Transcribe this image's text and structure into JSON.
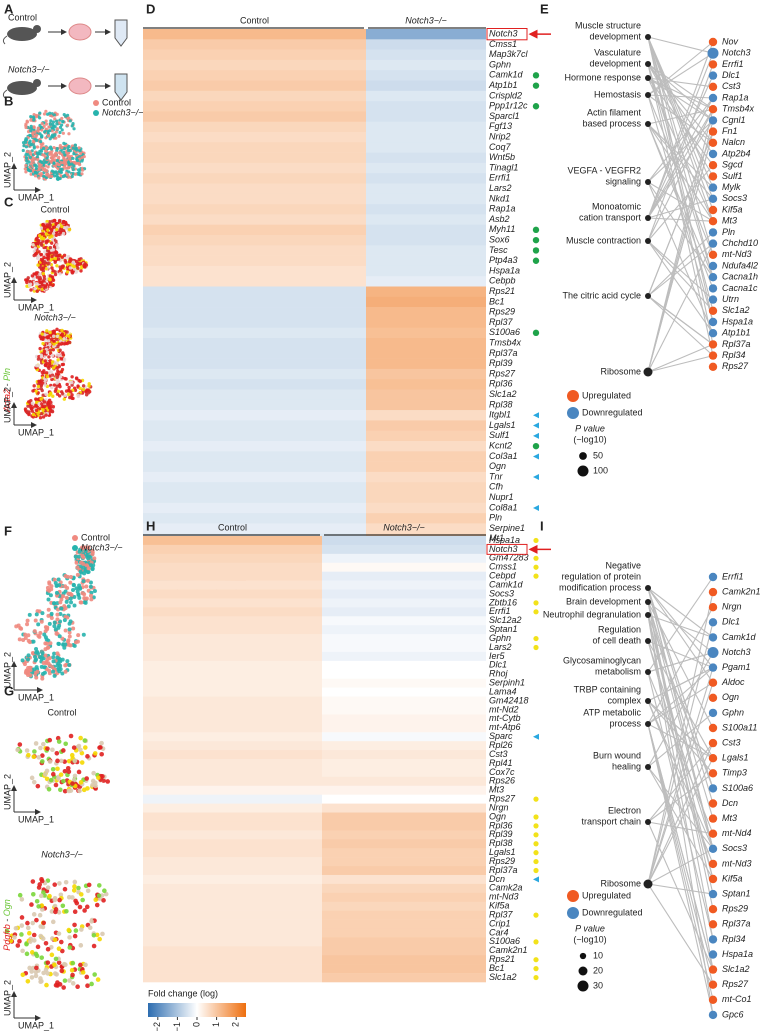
{
  "panels": {
    "A": {
      "label": "A",
      "groups": [
        "Control",
        "Notch3−/−"
      ]
    },
    "B": {
      "label": "B",
      "legend": [
        {
          "name": "Control",
          "color": "#f08a80"
        },
        {
          "name": "Notch3−/−",
          "color": "#27b3ad"
        }
      ],
      "x_label": "UMAP_1",
      "y_label": "UMAP_2"
    },
    "C": {
      "label": "C",
      "titles": [
        "Control",
        "Notch3−/−"
      ],
      "gene_label": [
        {
          "text": "Acta2",
          "color": "#e02020"
        },
        {
          "text": " - ",
          "color": "#444444"
        },
        {
          "text": "Pln",
          "color": "#6cc63a"
        }
      ],
      "x_label": "UMAP_1",
      "y_label": "UMAP_2"
    },
    "D": {
      "label": "D",
      "groups": [
        "Control",
        "Notch3−/−"
      ],
      "genes": [
        "Notch3",
        "Cmss1",
        "Map3k7cl",
        "Gphn",
        "Camk1d",
        "Atp1b1",
        "Crispld2",
        "Ppp1r12c",
        "Sparcl1",
        "Fgf13",
        "Nrip2",
        "Coq7",
        "Wnt5b",
        "Tinagl1",
        "Errfi1",
        "Lars2",
        "Nkd1",
        "Rap1a",
        "Asb2",
        "Myh11",
        "Sox6",
        "Tesc",
        "Ptp4a3",
        "Hspa1a",
        "Cebpb",
        "Rps21",
        "Bc1",
        "Rps29",
        "Rpl37",
        "S100a6",
        "Tmsb4x",
        "Rpl37a",
        "Rpl39",
        "Rps27",
        "Rpl36",
        "Slc1a2",
        "Rpl38",
        "Itgbl1",
        "Lgals1",
        "Sulf1",
        "Kcnt2",
        "Col3a1",
        "Ogn",
        "Tnr",
        "Cfh",
        "Nupr1",
        "Col8a1",
        "Pln",
        "Serpine1",
        "Mt1"
      ],
      "values": [
        [
          1.2,
          -1.4
        ],
        [
          0.9,
          -0.6
        ],
        [
          0.8,
          -0.5
        ],
        [
          0.7,
          -0.4
        ],
        [
          0.8,
          -0.5
        ],
        [
          0.9,
          -0.6
        ],
        [
          0.7,
          -0.4
        ],
        [
          0.8,
          -0.5
        ],
        [
          0.9,
          -0.5
        ],
        [
          0.7,
          -0.4
        ],
        [
          0.6,
          -0.4
        ],
        [
          0.7,
          -0.4
        ],
        [
          0.7,
          -0.5
        ],
        [
          0.6,
          -0.4
        ],
        [
          0.7,
          -0.5
        ],
        [
          0.6,
          -0.4
        ],
        [
          0.6,
          -0.4
        ],
        [
          0.7,
          -0.5
        ],
        [
          0.6,
          -0.4
        ],
        [
          0.8,
          -0.5
        ],
        [
          0.7,
          -0.5
        ],
        [
          0.6,
          -0.4
        ],
        [
          0.6,
          -0.4
        ],
        [
          0.5,
          -0.4
        ],
        [
          0.5,
          -0.3
        ],
        [
          -0.5,
          1.3
        ],
        [
          -0.5,
          1.4
        ],
        [
          -0.5,
          1.2
        ],
        [
          -0.5,
          1.2
        ],
        [
          -0.4,
          1.1
        ],
        [
          -0.5,
          1.2
        ],
        [
          -0.5,
          1.2
        ],
        [
          -0.5,
          1.2
        ],
        [
          -0.4,
          1.0
        ],
        [
          -0.5,
          1.1
        ],
        [
          -0.4,
          1.0
        ],
        [
          -0.4,
          1.0
        ],
        [
          -0.3,
          0.6
        ],
        [
          -0.4,
          0.9
        ],
        [
          -0.4,
          0.8
        ],
        [
          -0.3,
          0.6
        ],
        [
          -0.4,
          0.8
        ],
        [
          -0.4,
          0.8
        ],
        [
          -0.3,
          0.6
        ],
        [
          -0.4,
          0.7
        ],
        [
          -0.4,
          0.7
        ],
        [
          -0.3,
          0.6
        ],
        [
          -0.4,
          0.8
        ],
        [
          -0.3,
          0.6
        ],
        [
          -0.4,
          0.7
        ]
      ],
      "colorbar_title": "Fold change (log)",
      "lim": [
        -2.5,
        2.5
      ],
      "ticks": [
        {
          "value": -2,
          "label": "−2"
        },
        {
          "value": -1,
          "label": "−1"
        },
        0,
        1,
        2
      ]
    },
    "E": {
      "label": "E",
      "terms": [
        {
          "lines": [
            "Muscle structure",
            "development"
          ]
        },
        {
          "lines": [
            "Vasculature",
            "development"
          ]
        },
        {
          "lines": [
            "Hormone response"
          ]
        },
        {
          "lines": [
            "Hemostasis"
          ]
        },
        {
          "lines": [
            "Actin filament",
            "based process"
          ]
        },
        {
          "lines": [
            "VEGFA - VEGFR2",
            "signaling"
          ]
        },
        {
          "lines": [
            "Monoatomic",
            "cation transport"
          ]
        },
        {
          "lines": [
            "Muscle contraction"
          ]
        },
        {
          "lines": [
            "The citric acid cycle"
          ]
        },
        {
          "lines": [
            "Ribosome"
          ]
        }
      ],
      "genes": [
        {
          "label": "Nov",
          "regulation": "Upregulated"
        },
        {
          "label": "Notch3",
          "regulation": "Downregulated"
        },
        {
          "label": "Errfi1",
          "regulation": "Upregulated"
        },
        {
          "label": "Dlc1",
          "regulation": "Downregulated"
        },
        {
          "label": "Cst3",
          "regulation": "Upregulated"
        },
        {
          "label": "Rap1a",
          "regulation": "Downregulated"
        },
        {
          "label": "Tmsb4x",
          "regulation": "Upregulated"
        },
        {
          "label": "Cgnl1",
          "regulation": "Downregulated"
        },
        {
          "label": "Fn1",
          "regulation": "Upregulated"
        },
        {
          "label": "Nalcn",
          "regulation": "Upregulated"
        },
        {
          "label": "Atp2b4",
          "regulation": "Downregulated"
        },
        {
          "label": "Sgcd",
          "regulation": "Upregulated"
        },
        {
          "label": "Sulf1",
          "regulation": "Upregulated"
        },
        {
          "label": "Mylk",
          "regulation": "Downregulated"
        },
        {
          "label": "Socs3",
          "regulation": "Downregulated"
        },
        {
          "label": "Kif5a",
          "regulation": "Upregulated"
        },
        {
          "label": "Mt3",
          "regulation": "Upregulated"
        },
        {
          "label": "Pln",
          "regulation": "Downregulated"
        },
        {
          "label": "Chchd10",
          "regulation": "Downregulated"
        },
        {
          "label": "mt-Nd3",
          "regulation": "Upregulated"
        },
        {
          "label": "Ndufa4l2",
          "regulation": "Downregulated"
        },
        {
          "label": "Cacna1h",
          "regulation": "Downregulated"
        },
        {
          "label": "Cacna1c",
          "regulation": "Downregulated"
        },
        {
          "label": "Utrn",
          "regulation": "Downregulated"
        },
        {
          "label": "Slc1a2",
          "regulation": "Upregulated"
        },
        {
          "label": "Hspa1a",
          "regulation": "Downregulated"
        },
        {
          "label": "Atp1b1",
          "regulation": "Downregulated"
        },
        {
          "label": "Rpl37a",
          "regulation": "Upregulated"
        },
        {
          "label": "Rpl34",
          "regulation": "Upregulated"
        },
        {
          "label": "Rps27",
          "regulation": "Upregulated"
        }
      ],
      "legend": [
        {
          "name": "Upregulated",
          "color": "#f05a22"
        },
        {
          "name": "Downregulated",
          "color": "#4a86c0"
        }
      ],
      "size_title": [
        "P value",
        "(−log10)"
      ],
      "sizes": [
        50,
        100
      ]
    },
    "F": {
      "label": "F",
      "legend": [
        {
          "name": "Control",
          "color": "#f08a80"
        },
        {
          "name": "Notch3−/−",
          "color": "#27b3ad"
        }
      ],
      "x_label": "UMAP_1",
      "y_label": "UMAP_2"
    },
    "G": {
      "label": "G",
      "titles": [
        "Control",
        "Notch3−/−"
      ],
      "gene_label": [
        {
          "text": "Pdgfrb",
          "color": "#e02020"
        },
        {
          "text": " - ",
          "color": "#444444"
        },
        {
          "text": "Ogn",
          "color": "#6cc63a"
        }
      ],
      "x_label": "UMAP_1",
      "y_label": "UMAP_2"
    },
    "H": {
      "label": "H",
      "groups": [
        "Control",
        "Notch3−/−"
      ],
      "genes": [
        "Hspa1a",
        "Notch3",
        "Gm47283",
        "Cmss1",
        "Cebpd",
        "Camk1d",
        "Socs3",
        "Zbtb16",
        "Errfi1",
        "Slc12a2",
        "Sptan1",
        "Gphn",
        "Lars2",
        "Ier5",
        "Dlc1",
        "Rhoj",
        "Serpinh1",
        "Lama4",
        "Gm42418",
        "mt-Nd2",
        "mt-Cytb",
        "mt-Atp6",
        "Sparc",
        "Rpl26",
        "Cst3",
        "Rpl41",
        "Cox7c",
        "Rps26",
        "Mt3",
        "Rps27",
        "Nrgn",
        "Ogn",
        "Rpl36",
        "Rpl39",
        "Rpl38",
        "Lgals1",
        "Rps29",
        "Rpl37a",
        "Dcn",
        "Camk2a",
        "mt-Nd3",
        "Kif5a",
        "Rpl37",
        "Crip1",
        "Car4",
        "S100a6",
        "Camk2n1",
        "Rps21",
        "Bc1",
        "Slc1a2"
      ],
      "values": [
        [
          1.1,
          -0.6
        ],
        [
          0.8,
          -0.5
        ],
        [
          0.7,
          -0.2
        ],
        [
          0.6,
          0.1
        ],
        [
          0.6,
          -0.3
        ],
        [
          0.5,
          -0.2
        ],
        [
          0.6,
          -0.3
        ],
        [
          0.5,
          -0.2
        ],
        [
          0.6,
          -0.3
        ],
        [
          0.5,
          -0.1
        ],
        [
          0.5,
          -0.2
        ],
        [
          0.4,
          -0.1
        ],
        [
          0.4,
          -0.1
        ],
        [
          0.4,
          -0.2
        ],
        [
          0.3,
          0.0
        ],
        [
          0.3,
          0.0
        ],
        [
          0.3,
          0.1
        ],
        [
          0.3,
          0.0
        ],
        [
          0.4,
          0.1
        ],
        [
          0.4,
          0.1
        ],
        [
          0.4,
          0.2
        ],
        [
          0.4,
          0.2
        ],
        [
          0.3,
          -0.1
        ],
        [
          0.4,
          0.3
        ],
        [
          0.5,
          0.4
        ],
        [
          0.4,
          0.3
        ],
        [
          0.4,
          0.3
        ],
        [
          0.4,
          0.4
        ],
        [
          0.2,
          0.2
        ],
        [
          -0.2,
          0.0
        ],
        [
          0.3,
          0.5
        ],
        [
          0.5,
          0.9
        ],
        [
          0.5,
          0.9
        ],
        [
          0.4,
          0.8
        ],
        [
          0.5,
          0.9
        ],
        [
          0.5,
          0.8
        ],
        [
          0.4,
          0.8
        ],
        [
          0.4,
          0.9
        ],
        [
          0.3,
          0.5
        ],
        [
          0.4,
          0.7
        ],
        [
          0.4,
          0.8
        ],
        [
          0.4,
          0.7
        ],
        [
          0.4,
          0.8
        ],
        [
          0.4,
          0.8
        ],
        [
          0.4,
          0.8
        ],
        [
          0.4,
          0.9
        ],
        [
          0.5,
          0.9
        ],
        [
          0.5,
          1.0
        ],
        [
          0.5,
          1.0
        ],
        [
          0.5,
          0.9
        ]
      ],
      "colorbar_title": "Fold change (log)",
      "lim": [
        -2.5,
        2.5
      ],
      "ticks": [
        {
          "value": -2,
          "label": "−2"
        },
        {
          "value": -1,
          "label": "−1"
        },
        0,
        1,
        2
      ]
    },
    "I": {
      "label": "I",
      "terms": [
        {
          "lines": [
            "Negative",
            "regulation of protein",
            "modification process"
          ]
        },
        {
          "lines": [
            "Brain development"
          ]
        },
        {
          "lines": [
            "Neutrophil degranulation"
          ]
        },
        {
          "lines": [
            "Regulation",
            "of cell death"
          ]
        },
        {
          "lines": [
            "Glycosaminoglycan",
            "metabolism"
          ]
        },
        {
          "lines": [
            "TRBP containing",
            "complex"
          ]
        },
        {
          "lines": [
            "ATP metabolic",
            "process"
          ]
        },
        {
          "lines": [
            "Burn wound",
            "healing"
          ]
        },
        {
          "lines": [
            "Electron",
            "transport chain"
          ]
        },
        {
          "lines": [
            "Ribosome"
          ]
        }
      ],
      "genes": [
        {
          "label": "Errfi1",
          "regulation": "Downregulated"
        },
        {
          "label": "Camk2n1",
          "regulation": "Upregulated"
        },
        {
          "label": "Nrgn",
          "regulation": "Upregulated"
        },
        {
          "label": "Dlc1",
          "regulation": "Downregulated"
        },
        {
          "label": "Camk1d",
          "regulation": "Downregulated"
        },
        {
          "label": "Notch3",
          "regulation": "Downregulated"
        },
        {
          "label": "Pgam1",
          "regulation": "Downregulated"
        },
        {
          "label": "Aldoc",
          "regulation": "Upregulated"
        },
        {
          "label": "Ogn",
          "regulation": "Upregulated"
        },
        {
          "label": "Gphn",
          "regulation": "Downregulated"
        },
        {
          "label": "S100a11",
          "regulation": "Upregulated"
        },
        {
          "label": "Cst3",
          "regulation": "Upregulated"
        },
        {
          "label": "Lgals1",
          "regulation": "Upregulated"
        },
        {
          "label": "Timp3",
          "regulation": "Upregulated"
        },
        {
          "label": "S100a6",
          "regulation": "Downregulated"
        },
        {
          "label": "Dcn",
          "regulation": "Upregulated"
        },
        {
          "label": "Mt3",
          "regulation": "Upregulated"
        },
        {
          "label": "mt-Nd4",
          "regulation": "Upregulated"
        },
        {
          "label": "Socs3",
          "regulation": "Downregulated"
        },
        {
          "label": "mt-Nd3",
          "regulation": "Upregulated"
        },
        {
          "label": "Kif5a",
          "regulation": "Upregulated"
        },
        {
          "label": "Sptan1",
          "regulation": "Downregulated"
        },
        {
          "label": "Rps29",
          "regulation": "Upregulated"
        },
        {
          "label": "Rpl37a",
          "regulation": "Upregulated"
        },
        {
          "label": "Rpl34",
          "regulation": "Downregulated"
        },
        {
          "label": "Hspa1a",
          "regulation": "Downregulated"
        },
        {
          "label": "Slc1a2",
          "regulation": "Upregulated"
        },
        {
          "label": "Rps27",
          "regulation": "Upregulated"
        },
        {
          "label": "mt-Co1",
          "regulation": "Upregulated"
        },
        {
          "label": "Gpc6",
          "regulation": "Downregulated"
        }
      ],
      "legend": [
        {
          "name": "Upregulated",
          "color": "#f05a22"
        },
        {
          "name": "Downregulated",
          "color": "#4a86c0"
        }
      ],
      "size_title": [
        "P value",
        "(−log10)"
      ],
      "sizes": [
        10,
        20,
        30
      ]
    }
  }
}
